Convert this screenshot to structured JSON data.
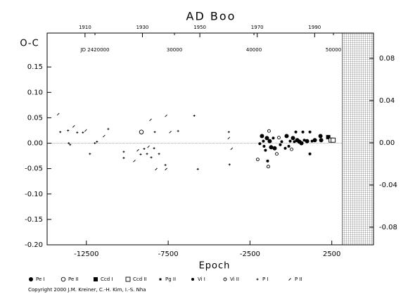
{
  "chart_data": {
    "type": "scatter",
    "title": "AD Boo",
    "ylabel": "O-C",
    "xlabel": "Epoch",
    "copyright": "Copyright 2000 J.M. Kreiner, C.-H. Kim, I.-S. Nha",
    "xlim": [
      -14900,
      5050
    ],
    "xticks": [
      -12500,
      -7500,
      -2500,
      2500
    ],
    "ylim": [
      -0.2,
      0.2167
    ],
    "yticks": [
      0.15,
      {
        "value": 0.1,
        "label": "0.10"
      },
      0.05,
      {
        "value": 0,
        "label": "0.00"
      },
      -0.05,
      {
        "value": -0.1,
        "label": "-0.10"
      },
      -0.15,
      {
        "value": -0.2,
        "label": "-0.20"
      }
    ],
    "y2lim": [
      -0.0967,
      0.104
    ],
    "y2ticks": [
      0.08,
      0.04,
      {
        "value": 0,
        "label": "0.00"
      },
      -0.04,
      -0.08
    ],
    "year_lim": [
      1896.8,
      2010.5
    ],
    "year_ticks": [
      1910,
      1930,
      1950,
      1970,
      1990
    ],
    "jd_lim": [
      2413980,
      2455040
    ],
    "jd_ticks": [
      {
        "value": 2420000,
        "label": "JD 2420000"
      },
      {
        "value": 2430000,
        "label": "30000"
      },
      {
        "value": 2440000,
        "label": "40000"
      },
      {
        "value": 2450000,
        "label": "50000"
      }
    ],
    "shaded_from": 3150,
    "series": [
      {
        "name": "Pe I",
        "marker": "filled-circle",
        "color": "#000000",
        "x": [
          -1768,
          -1466,
          -1294,
          -1208,
          -992,
          -260,
          128,
          387,
          516,
          646,
          990,
          1464,
          1809,
          1852
        ],
        "values": [
          0.014,
          0.01,
          0.004,
          -0.008,
          -0.01,
          0.014,
          0.01,
          0.006,
          0.003,
          0.0,
          0.004,
          0.006,
          0.014,
          0.006
        ]
      },
      {
        "name": "Pe II",
        "marker": "open-circle",
        "color": "#000000",
        "x": [
          -9138
        ],
        "values": [
          0.022
        ]
      },
      {
        "name": "Ccd I",
        "marker": "filled-square",
        "color": "#000000",
        "x": [
          2283
        ],
        "values": [
          0.012
        ]
      },
      {
        "name": "Ccd II",
        "marker": "open-square",
        "color": "#000000",
        "x": [
          2456,
          2585
        ],
        "values": [
          0.006,
          0.006
        ]
      },
      {
        "name": "Pg II",
        "marker": "small-square",
        "color": "#000000",
        "x": [],
        "values": []
      },
      {
        "name": "Vi I",
        "marker": "dot",
        "color": "#000000",
        "x": [
          -1898,
          -1682,
          -1639,
          -1553,
          -1423,
          -1078,
          -648,
          -561,
          -346,
          -130,
          -44,
          215,
          301,
          732,
          818,
          1163,
          1163,
          1292
        ],
        "values": [
          -0.001,
          0.004,
          -0.006,
          -0.014,
          -0.035,
          0.01,
          -0.003,
          0.003,
          -0.01,
          -0.006,
          0.004,
          0.003,
          0.022,
          0.022,
          0.006,
          0.022,
          -0.021,
          0.004
        ]
      },
      {
        "name": "Vi II",
        "marker": "open-dot",
        "color": "#000000",
        "x": [
          -2027,
          -1380,
          -1337,
          -863,
          -734,
          42
        ],
        "values": [
          -0.032,
          -0.046,
          0.024,
          -0.021,
          0.011,
          -0.012
        ]
      },
      {
        "name": "P I",
        "marker": "plus",
        "color": "#000000",
        "x": [
          -14095,
          -13620,
          -13577,
          -13491,
          -13060,
          -12715,
          -12285,
          -11983,
          -11854,
          -11164,
          -10216,
          -10216,
          -9181,
          -8966,
          -8793,
          -8535,
          -8362,
          -8319,
          -8060,
          -7672,
          -6896,
          -5905,
          -5690,
          -3794,
          -3751
        ],
        "values": [
          0.022,
          0.025,
          0.0,
          -0.003,
          0.021,
          0.021,
          -0.021,
          0.0,
          0.003,
          0.028,
          -0.017,
          -0.029,
          -0.022,
          -0.011,
          -0.021,
          -0.028,
          -0.01,
          0.022,
          -0.021,
          -0.043,
          0.024,
          0.054,
          -0.051,
          0.022,
          -0.042
        ]
      },
      {
        "name": "P II",
        "marker": "slash",
        "color": "#000000",
        "x": [
          -14224,
          -13276,
          -12543,
          -11423,
          -9569,
          -9354,
          -8707,
          -8578,
          -8233,
          -7629,
          -7629,
          -7370,
          -3794,
          -3621
        ],
        "values": [
          0.057,
          0.033,
          0.025,
          0.014,
          -0.035,
          -0.014,
          -0.007,
          0.046,
          -0.051,
          0.054,
          -0.051,
          0.022,
          0.01,
          -0.011
        ]
      }
    ]
  }
}
